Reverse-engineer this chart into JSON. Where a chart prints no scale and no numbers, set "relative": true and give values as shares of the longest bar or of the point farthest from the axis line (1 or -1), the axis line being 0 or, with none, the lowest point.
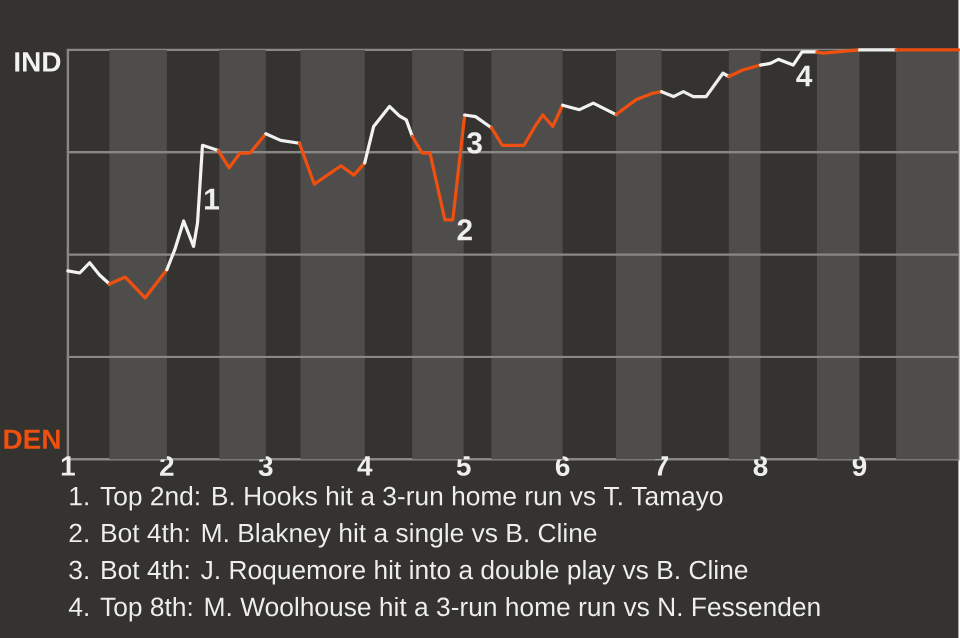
{
  "chart_data": {
    "type": "line",
    "relative": true,
    "xlim": [
      1,
      10
    ],
    "xticks": [
      {
        "value": 1,
        "label": "1"
      },
      {
        "value": 2,
        "label": "2"
      },
      {
        "value": 3,
        "label": "3"
      },
      {
        "value": 4,
        "label": "4"
      },
      {
        "value": 5,
        "label": "5"
      },
      {
        "value": 6,
        "label": "6"
      },
      {
        "value": 7,
        "label": "7"
      },
      {
        "value": 8,
        "label": "8"
      },
      {
        "value": 9,
        "label": "9"
      }
    ],
    "ref_lines": [
      {
        "axis": "y",
        "value": 0.25,
        "label": null,
        "color": "#8a8886"
      },
      {
        "axis": "y",
        "value": 0.5,
        "label": null,
        "color": "#8a8886"
      },
      {
        "axis": "y",
        "value": 0.75,
        "label": null,
        "color": "#8a8886"
      }
    ],
    "bands": [
      {
        "axis": "x",
        "from": 1.42,
        "to": 2,
        "label": null,
        "color": "#4f4d4b"
      },
      {
        "axis": "x",
        "from": 2.53,
        "to": 3,
        "label": null,
        "color": "#4f4d4b"
      },
      {
        "axis": "x",
        "from": 3.35,
        "to": 4,
        "label": null,
        "color": "#4f4d4b"
      },
      {
        "axis": "x",
        "from": 4.48,
        "to": 5,
        "label": null,
        "color": "#4f4d4b"
      },
      {
        "axis": "x",
        "from": 5.28,
        "to": 6,
        "label": null,
        "color": "#4f4d4b"
      },
      {
        "axis": "x",
        "from": 6.54,
        "to": 7,
        "label": null,
        "color": "#4f4d4b"
      },
      {
        "axis": "x",
        "from": 7.68,
        "to": 8,
        "label": null,
        "color": "#4f4d4b"
      },
      {
        "axis": "x",
        "from": 8.57,
        "to": 9,
        "label": null,
        "color": "#4f4d4b"
      },
      {
        "axis": "x",
        "from": 9.37,
        "to": 10,
        "label": null,
        "color": "#4f4d4b"
      }
    ],
    "series": [
      {
        "name": "IND",
        "color": "#f2f2f2",
        "x": [
          1.0,
          1.12,
          1.22,
          1.32,
          1.42
        ],
        "values": [
          0.46,
          0.455,
          0.48,
          0.45,
          0.428
        ]
      },
      {
        "name": "DEN",
        "color": "#f0500f",
        "x": [
          1.42,
          1.58,
          1.78,
          2.0
        ],
        "values": [
          0.428,
          0.445,
          0.394,
          0.463
        ]
      },
      {
        "color": "#f2f2f2",
        "x": [
          2.0,
          2.08,
          2.17,
          2.27,
          2.31,
          2.36,
          2.52
        ],
        "values": [
          0.463,
          0.512,
          0.582,
          0.52,
          0.577,
          0.767,
          0.754
        ]
      },
      {
        "color": "#f0500f",
        "x": [
          2.52,
          2.63,
          2.74,
          2.84,
          3.0
        ],
        "values": [
          0.754,
          0.712,
          0.748,
          0.748,
          0.795
        ]
      },
      {
        "color": "#f0f0f0",
        "x": [
          3.0,
          3.15,
          3.34
        ],
        "values": [
          0.795,
          0.779,
          0.772
        ]
      },
      {
        "color": "#f0500f",
        "x": [
          3.34,
          3.49,
          3.76,
          3.89,
          4.0
        ],
        "values": [
          0.772,
          0.672,
          0.717,
          0.694,
          0.724
        ]
      },
      {
        "color": "#f2f2f2",
        "x": [
          4.0,
          4.09,
          4.25,
          4.35,
          4.42,
          4.48
        ],
        "values": [
          0.724,
          0.813,
          0.862,
          0.839,
          0.829,
          0.789
        ]
      },
      {
        "color": "#f0500f",
        "x": [
          4.48,
          4.58,
          4.66,
          4.81,
          4.89,
          5.01
        ],
        "values": [
          0.789,
          0.748,
          0.748,
          0.585,
          0.585,
          0.841
        ]
      },
      {
        "color": "#f2f2f2",
        "x": [
          5.01,
          5.12,
          5.28
        ],
        "values": [
          0.841,
          0.837,
          0.81
        ]
      },
      {
        "color": "#f0500f",
        "x": [
          5.28,
          5.39,
          5.61,
          5.72,
          5.8,
          5.9,
          6.0
        ],
        "values": [
          0.81,
          0.767,
          0.767,
          0.813,
          0.841,
          0.813,
          0.865
        ]
      },
      {
        "color": "#f2f2f2",
        "x": [
          6.0,
          6.17,
          6.31,
          6.54
        ],
        "values": [
          0.865,
          0.854,
          0.87,
          0.842
        ]
      },
      {
        "color": "#f0500f",
        "x": [
          6.54,
          6.74,
          6.91,
          7.0
        ],
        "values": [
          0.842,
          0.878,
          0.894,
          0.898
        ]
      },
      {
        "color": "#eeeeee",
        "x": [
          7.0,
          7.12,
          7.22,
          7.32,
          7.45,
          7.62,
          7.68
        ],
        "values": [
          0.898,
          0.886,
          0.898,
          0.886,
          0.886,
          0.943,
          0.935
        ]
      },
      {
        "color": "#ee4e0e",
        "x": [
          7.68,
          7.82,
          8.0
        ],
        "values": [
          0.935,
          0.951,
          0.963
        ]
      },
      {
        "color": "#f4f4f4",
        "x": [
          8.0,
          8.1,
          8.18,
          8.33,
          8.42,
          8.57
        ],
        "values": [
          0.963,
          0.967,
          0.977,
          0.963,
          0.995,
          0.995
        ]
      },
      {
        "color": "#f2520f",
        "x": [
          8.57,
          8.63,
          9.0
        ],
        "values": [
          0.995,
          0.992,
          1.0
        ]
      },
      {
        "color": "#ececec",
        "x": [
          9.0,
          9.37
        ],
        "values": [
          1.0,
          1.0
        ]
      },
      {
        "color": "#ec4c0d",
        "x": [
          9.37,
          10.0
        ],
        "values": [
          1.0,
          1.0
        ]
      }
    ],
    "annotations": [
      {
        "text": "1",
        "x": 2.31,
        "y": 0.577
      },
      {
        "text": "2",
        "x": 4.89,
        "y": 0.585
      },
      {
        "text": "3",
        "x": 5.01,
        "y": 0.841
      },
      {
        "text": "4",
        "x": 8.42,
        "y": 0.995
      },
      "1. Top 2nd: B. Hooks hit a 3-run home run vs T. Tamayo",
      "2. Bot 4th: M. Blakney hit a single vs B. Cline",
      "3. Bot 4th: J. Roquemore hit into a double play vs B. Cline",
      "4. Top 8th: M. Woolhouse hit a 3-run home run vs N. Fessenden"
    ]
  }
}
